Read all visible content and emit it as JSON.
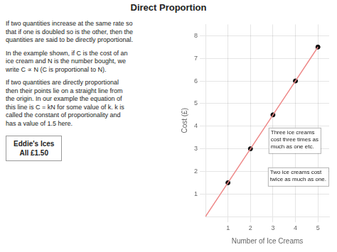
{
  "chart_data": {
    "type": "line",
    "title": "Direct Proportion",
    "x_label": "Number of Ice Creams",
    "y_label": "Cost (£)",
    "series": [
      {
        "type": "line",
        "color": "#ee8888",
        "marker": "none",
        "x": [
          0,
          1,
          2,
          3,
          4,
          5
        ],
        "values": [
          0,
          1.5,
          3.0,
          4.5,
          6.0,
          7.5
        ]
      },
      {
        "type": "scatter",
        "color": "#111111",
        "marker": "circle",
        "x": [
          1,
          2,
          3,
          4,
          5
        ],
        "values": [
          1.5,
          3.0,
          4.5,
          6.0,
          7.5
        ]
      }
    ],
    "xlim": [
      0,
      5.5
    ],
    "xticks": [
      1,
      2,
      3,
      4,
      5
    ],
    "ylim": [
      0,
      8.5
    ],
    "yticks": [
      1,
      2,
      3,
      4,
      5,
      6,
      7,
      8
    ],
    "grid": true,
    "annotations": [
      "Three ice creams\ncost three times as\nmuch as one etc.",
      "Two ice creams cost\ntwice as much as one."
    ],
    "paragraphs": [
      "If two quantities increase at the same rate so\nthat if one is doubled so is the other, then the\nquantities are said to be directly proportional.",
      "In the example shown, if C is the cost of an\nice cream and N is the number bought, we\nwrite C ∝ N  (C is proportional to N).",
      "If two quantities are directly proportional\nthen their points lie on a straight line from\nthe origin. In our example the equation of\nthis line is C = kN for some value of k. k is\ncalled the constant of proportionality and\nhas a value of 1.5 here."
    ],
    "sign": [
      "Eddie's Ices",
      "All £1.50"
    ]
  }
}
